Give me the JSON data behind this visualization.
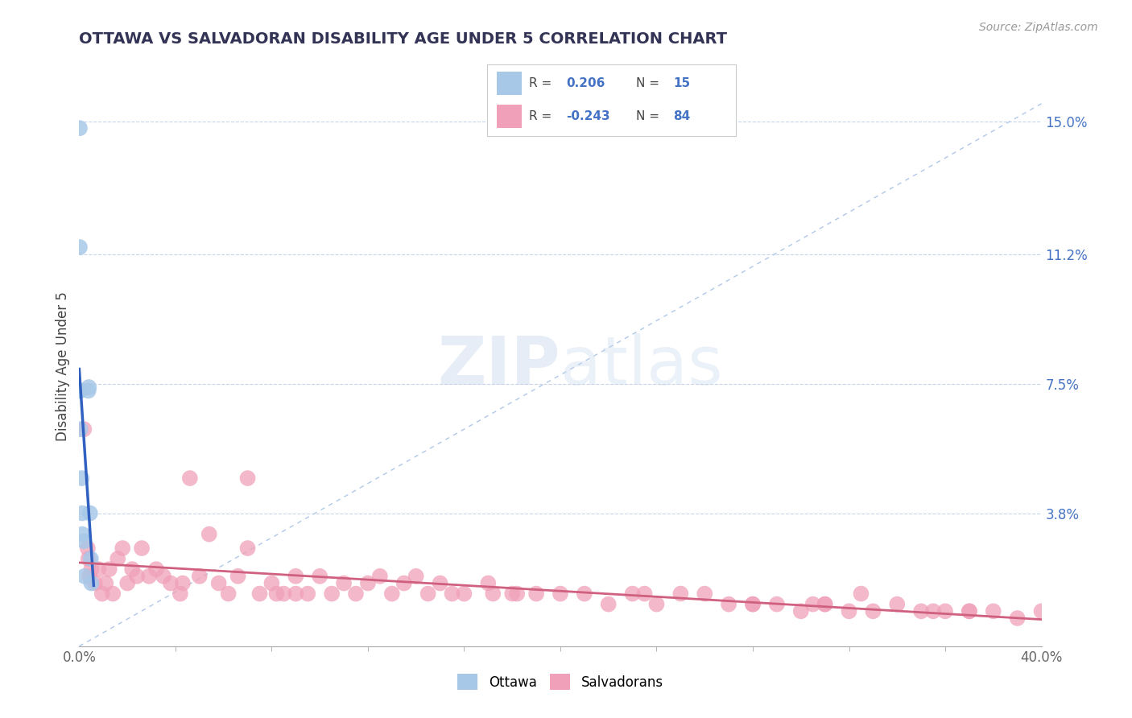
{
  "title": "OTTAWA VS SALVADORAN DISABILITY AGE UNDER 5 CORRELATION CHART",
  "source": "Source: ZipAtlas.com",
  "ylabel": "Disability Age Under 5",
  "xlim": [
    0.0,
    0.4
  ],
  "ylim": [
    0.0,
    0.16
  ],
  "ytick_labels": [
    "3.8%",
    "7.5%",
    "11.2%",
    "15.0%"
  ],
  "ytick_values": [
    0.038,
    0.075,
    0.112,
    0.15
  ],
  "background_color": "#ffffff",
  "ottawa_color": "#a8c8e8",
  "salvadoran_color": "#f0a0b8",
  "ottawa_line_color": "#3060c0",
  "salvadoran_line_color": "#d06080",
  "dash_line_color": "#b0c8e8",
  "ottawa_points_x": [
    0.0002,
    0.0002,
    0.0003,
    0.0003,
    0.0004,
    0.001,
    0.0012,
    0.0013,
    0.002,
    0.0022,
    0.0038,
    0.004,
    0.0045,
    0.0048,
    0.005
  ],
  "ottawa_points_y": [
    0.148,
    0.114,
    0.073,
    0.073,
    0.062,
    0.048,
    0.038,
    0.032,
    0.03,
    0.02,
    0.073,
    0.074,
    0.038,
    0.025,
    0.018
  ],
  "salvadoran_points_x": [
    0.002,
    0.0035,
    0.0038,
    0.0042,
    0.005,
    0.0065,
    0.008,
    0.0095,
    0.011,
    0.0125,
    0.014,
    0.016,
    0.018,
    0.02,
    0.022,
    0.024,
    0.026,
    0.029,
    0.032,
    0.035,
    0.038,
    0.042,
    0.046,
    0.05,
    0.054,
    0.058,
    0.062,
    0.066,
    0.07,
    0.075,
    0.08,
    0.085,
    0.09,
    0.095,
    0.1,
    0.105,
    0.11,
    0.115,
    0.12,
    0.125,
    0.13,
    0.135,
    0.14,
    0.145,
    0.15,
    0.16,
    0.17,
    0.18,
    0.19,
    0.2,
    0.21,
    0.22,
    0.23,
    0.24,
    0.25,
    0.26,
    0.27,
    0.28,
    0.29,
    0.3,
    0.31,
    0.32,
    0.33,
    0.34,
    0.35,
    0.36,
    0.37,
    0.38,
    0.39,
    0.4,
    0.305,
    0.155,
    0.07,
    0.082,
    0.043,
    0.09,
    0.172,
    0.235,
    0.182,
    0.325,
    0.28,
    0.37,
    0.31,
    0.355
  ],
  "salvadoran_points_y": [
    0.062,
    0.028,
    0.025,
    0.02,
    0.022,
    0.018,
    0.022,
    0.015,
    0.018,
    0.022,
    0.015,
    0.025,
    0.028,
    0.018,
    0.022,
    0.02,
    0.028,
    0.02,
    0.022,
    0.02,
    0.018,
    0.015,
    0.048,
    0.02,
    0.032,
    0.018,
    0.015,
    0.02,
    0.048,
    0.015,
    0.018,
    0.015,
    0.02,
    0.015,
    0.02,
    0.015,
    0.018,
    0.015,
    0.018,
    0.02,
    0.015,
    0.018,
    0.02,
    0.015,
    0.018,
    0.015,
    0.018,
    0.015,
    0.015,
    0.015,
    0.015,
    0.012,
    0.015,
    0.012,
    0.015,
    0.015,
    0.012,
    0.012,
    0.012,
    0.01,
    0.012,
    0.01,
    0.01,
    0.012,
    0.01,
    0.01,
    0.01,
    0.01,
    0.008,
    0.01,
    0.012,
    0.015,
    0.028,
    0.015,
    0.018,
    0.015,
    0.015,
    0.015,
    0.015,
    0.015,
    0.012,
    0.01,
    0.012,
    0.01
  ]
}
